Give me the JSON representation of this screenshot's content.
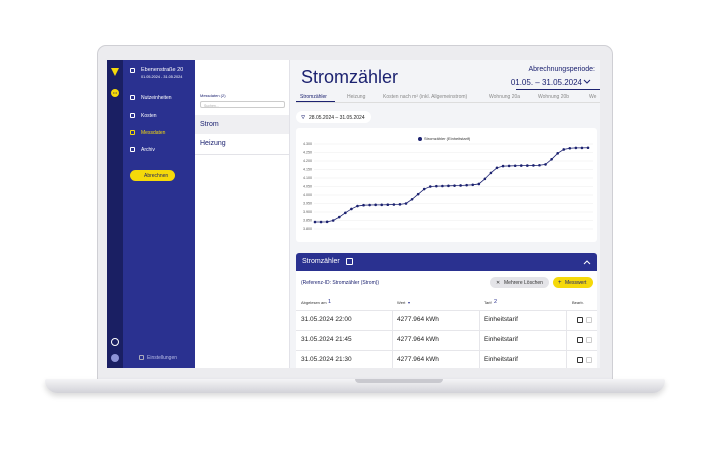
{
  "sidebar": {
    "address": "Ebenenstraße 20",
    "period": "01.05.2024 - 31.05.2024",
    "menu": [
      "Nutzeinheiten",
      "Kosten",
      "Messdaten",
      "Archiv"
    ],
    "button": "Abrechnen",
    "settings": "Einstellungen"
  },
  "list": {
    "title": "Messdaten (2)",
    "search_placeholder": "Suchen...",
    "items": [
      "Strom",
      "Heizung"
    ]
  },
  "header": {
    "title": "Stromzähler",
    "period_label": "Abrechnungsperiode:",
    "period": "01.05. – 31.05.2024"
  },
  "tabs": [
    "Stromzähler",
    "Heizung",
    "Kosten nach m² (inkl. Allgemeinstrom)",
    "Wohnung 20a",
    "Wohnung 20b",
    "We"
  ],
  "filter": "28.05.2024 – 31.05.2024",
  "chart_data": {
    "type": "line",
    "series": [
      {
        "name": "Stromzähler (Einheitstarif)",
        "color": "#1c2270",
        "values": [
          3841,
          3841,
          3842,
          3850,
          3870,
          3895,
          3918,
          3935,
          3940,
          3941,
          3942,
          3942,
          3943,
          3944,
          3945,
          3950,
          3975,
          4005,
          4035,
          4050,
          4052,
          4053,
          4054,
          4055,
          4056,
          4058,
          4060,
          4065,
          4095,
          4130,
          4160,
          4170,
          4171,
          4172,
          4173,
          4173,
          4174,
          4175,
          4180,
          4210,
          4245,
          4268,
          4275,
          4277,
          4277,
          4277.964
        ]
      }
    ],
    "ylim": [
      3800,
      4300
    ],
    "yticks": [
      {
        "value": 3800,
        "label": "3.800"
      },
      {
        "value": 3850,
        "label": "3.850"
      },
      {
        "value": 3900,
        "label": "3.900"
      },
      {
        "value": 3950,
        "label": "3.950"
      },
      {
        "value": 4000,
        "label": "4.000"
      },
      {
        "value": 4050,
        "label": "4.050"
      },
      {
        "value": 4100,
        "label": "4.100"
      },
      {
        "value": 4150,
        "label": "4.150"
      },
      {
        "value": 4200,
        "label": "4.200"
      },
      {
        "value": 4250,
        "label": "4.250"
      },
      {
        "value": 4300,
        "label": "4.300"
      }
    ],
    "grid": true
  },
  "table": {
    "title": "Stromzähler",
    "reference": "(Referenz-ID: Stromzähler (Strom))",
    "delete_button": "Mehrere Löschen",
    "add_button": "Messwert",
    "columns": [
      "Abgelesen am",
      "Wert",
      "Tarif",
      "Bearb."
    ],
    "sort_orders": [
      "1",
      "2"
    ],
    "rows": [
      [
        "31.05.2024 22:00",
        "4277.964 kWh",
        "Einheitstarif"
      ],
      [
        "31.05.2024 21:45",
        "4277.964 kWh",
        "Einheitstarif"
      ],
      [
        "31.05.2024 21:30",
        "4277.964 kWh",
        "Einheitstarif"
      ]
    ]
  }
}
